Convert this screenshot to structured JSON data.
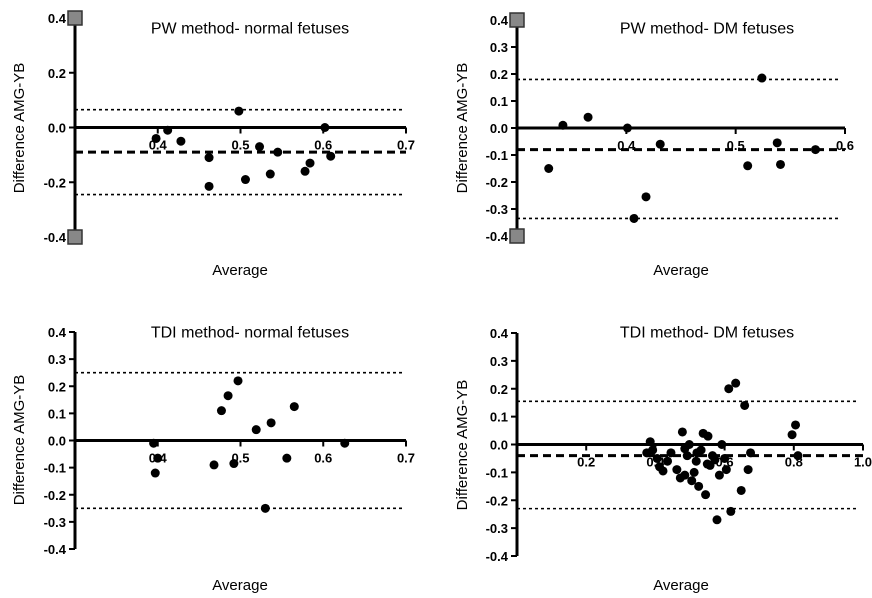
{
  "chart_data": [
    {
      "type": "scatter",
      "title": "PW method- normal fetuses",
      "xlabel": "Average",
      "ylabel": "Difference AMG-YB",
      "xlim": [
        0.3,
        0.7
      ],
      "ylim": [
        -0.4,
        0.4
      ],
      "xticks": [
        "0.4",
        "0.5",
        "0.6",
        "0.7"
      ],
      "yticks": [
        "-0.4",
        "-0.2",
        "0.0",
        "0.2",
        "0.4"
      ],
      "mean_line": -0.09,
      "limits_of_agreement": [
        0.065,
        -0.245
      ],
      "points": {
        "x": [
          0.398,
          0.412,
          0.428,
          0.462,
          0.462,
          0.498,
          0.506,
          0.523,
          0.536,
          0.545,
          0.578,
          0.584,
          0.602,
          0.609
        ],
        "y": [
          -0.04,
          -0.01,
          -0.05,
          -0.11,
          -0.215,
          0.06,
          -0.19,
          -0.07,
          -0.17,
          -0.09,
          -0.16,
          -0.13,
          0.0,
          -0.105
        ]
      }
    },
    {
      "type": "scatter",
      "title": "PW method- DM fetuses",
      "xlabel": "Average",
      "ylabel": "Difference AMG-YB",
      "xlim": [
        0.3,
        0.6
      ],
      "ylim": [
        -0.4,
        0.4
      ],
      "xticks": [
        "0.4",
        "0.5",
        "0.6"
      ],
      "yticks": [
        "-0.4",
        "-0.3",
        "-0.2",
        "-0.1",
        "0.0",
        "0.1",
        "0.2",
        "0.3",
        "0.4"
      ],
      "mean_line": -0.08,
      "limits_of_agreement": [
        0.18,
        -0.335
      ],
      "points": {
        "x": [
          0.329,
          0.342,
          0.365,
          0.401,
          0.407,
          0.418,
          0.431,
          0.511,
          0.524,
          0.541,
          0.573,
          0.538
        ],
        "y": [
          -0.15,
          0.01,
          0.04,
          0.0,
          -0.335,
          -0.255,
          -0.06,
          -0.14,
          0.185,
          -0.135,
          -0.08,
          -0.055
        ]
      }
    },
    {
      "type": "scatter",
      "title": "TDI method- normal fetuses",
      "xlabel": "Average",
      "ylabel": "Difference AMG-YB",
      "xlim": [
        0.3,
        0.7
      ],
      "ylim": [
        -0.4,
        0.4
      ],
      "xticks": [
        "0.4",
        "0.5",
        "0.6",
        "0.7"
      ],
      "yticks": [
        "-0.4",
        "-0.3",
        "-0.2",
        "-0.1",
        "0.0",
        "0.1",
        "0.2",
        "0.3",
        "0.4"
      ],
      "mean_line": 0.0,
      "limits_of_agreement": [
        0.25,
        -0.25
      ],
      "points": {
        "x": [
          0.395,
          0.4,
          0.397,
          0.468,
          0.477,
          0.485,
          0.492,
          0.497,
          0.519,
          0.53,
          0.537,
          0.556,
          0.565,
          0.626
        ],
        "y": [
          -0.01,
          -0.065,
          -0.12,
          -0.09,
          0.11,
          0.165,
          -0.085,
          0.22,
          0.04,
          -0.25,
          0.065,
          -0.065,
          0.125,
          -0.01
        ]
      }
    },
    {
      "type": "scatter",
      "title": "TDI method- DM fetuses",
      "xlabel": "Average",
      "ylabel": "Difference AMG-YB",
      "xlim": [
        0.0,
        1.0
      ],
      "ylim": [
        -0.4,
        0.4
      ],
      "xticks": [
        "0.2",
        "0.4",
        "0.6",
        "0.8",
        "1.0"
      ],
      "yticks": [
        "-0.4",
        "-0.3",
        "-0.2",
        "-0.1",
        "0.0",
        "0.1",
        "0.2",
        "0.3",
        "0.4"
      ],
      "mean_line": -0.04,
      "limits_of_agreement": [
        0.155,
        -0.23
      ],
      "points": {
        "x": [
          0.375,
          0.385,
          0.392,
          0.405,
          0.412,
          0.422,
          0.435,
          0.445,
          0.462,
          0.472,
          0.478,
          0.485,
          0.492,
          0.498,
          0.505,
          0.512,
          0.518,
          0.525,
          0.532,
          0.538,
          0.545,
          0.552,
          0.558,
          0.565,
          0.572,
          0.578,
          0.585,
          0.592,
          0.6,
          0.605,
          0.612,
          0.618,
          0.632,
          0.648,
          0.658,
          0.668,
          0.675,
          0.795,
          0.805,
          0.812,
          0.485,
          0.52,
          0.55
        ],
        "y": [
          -0.03,
          0.01,
          -0.02,
          -0.05,
          -0.08,
          -0.095,
          -0.06,
          -0.03,
          -0.09,
          -0.12,
          0.045,
          -0.11,
          -0.04,
          0.0,
          -0.13,
          -0.1,
          -0.06,
          -0.15,
          -0.02,
          0.04,
          -0.18,
          0.03,
          -0.075,
          -0.04,
          -0.055,
          -0.27,
          -0.11,
          0.0,
          -0.05,
          -0.09,
          0.2,
          -0.24,
          0.22,
          -0.165,
          0.14,
          -0.09,
          -0.03,
          0.035,
          0.07,
          -0.04,
          -0.015,
          -0.03,
          -0.07
        ]
      }
    }
  ]
}
